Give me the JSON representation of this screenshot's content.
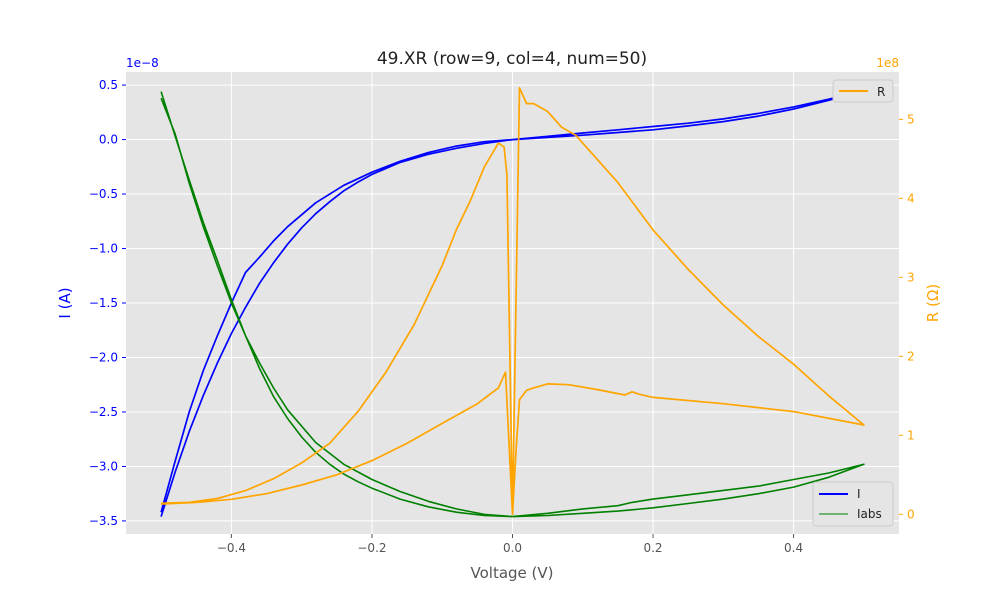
{
  "chart_data": {
    "type": "line",
    "title": "49.XR (row=9, col=4, num=50)",
    "xlabel": "Voltage (V)",
    "ylabel_left": "I (A)",
    "ylabel_right": "R (Ω)",
    "left_multiplier": "1e−8",
    "right_multiplier": "1e8",
    "xlim": [
      -0.55,
      0.55
    ],
    "ylim_left": [
      -3.62,
      0.62
    ],
    "ylim_right": [
      -0.25,
      5.6
    ],
    "x_ticks": [
      -0.4,
      -0.2,
      0.0,
      0.2,
      0.4
    ],
    "x_tick_labels": [
      "−0.4",
      "−0.2",
      "0.0",
      "0.2",
      "0.4"
    ],
    "left_ticks": [
      0.5,
      0.0,
      -0.5,
      -1.0,
      -1.5,
      -2.0,
      -2.5,
      -3.0,
      -3.5
    ],
    "left_tick_labels": [
      "0.5",
      "0.0",
      "−0.5",
      "−1.0",
      "−1.5",
      "−2.0",
      "−2.5",
      "−3.0",
      "−3.5"
    ],
    "right_ticks": [
      0,
      1,
      2,
      3,
      4,
      5
    ],
    "right_tick_labels": [
      "0",
      "1",
      "2",
      "3",
      "4",
      "5"
    ],
    "grid": true,
    "legend_left_axis": {
      "placement": "lower-right",
      "entries": [
        "I",
        "Iabs"
      ]
    },
    "legend_right_axis": {
      "placement": "upper-right",
      "entries": [
        "R"
      ]
    },
    "series": [
      {
        "name": "I",
        "axis": "left",
        "color": "#0000ff",
        "points": [
          [
            -0.5,
            -3.46
          ],
          [
            -0.48,
            -3.05
          ],
          [
            -0.46,
            -2.68
          ],
          [
            -0.44,
            -2.35
          ],
          [
            -0.42,
            -2.05
          ],
          [
            -0.4,
            -1.78
          ],
          [
            -0.38,
            -1.54
          ],
          [
            -0.36,
            -1.32
          ],
          [
            -0.34,
            -1.13
          ],
          [
            -0.32,
            -0.96
          ],
          [
            -0.3,
            -0.81
          ],
          [
            -0.28,
            -0.68
          ],
          [
            -0.26,
            -0.57
          ],
          [
            -0.24,
            -0.47
          ],
          [
            -0.22,
            -0.39
          ],
          [
            -0.2,
            -0.32
          ],
          [
            -0.16,
            -0.21
          ],
          [
            -0.12,
            -0.135
          ],
          [
            -0.08,
            -0.08
          ],
          [
            -0.04,
            -0.035
          ],
          [
            0.0,
            0.0
          ],
          [
            0.05,
            0.03
          ],
          [
            0.1,
            0.06
          ],
          [
            0.15,
            0.09
          ],
          [
            0.2,
            0.12
          ],
          [
            0.25,
            0.15
          ],
          [
            0.3,
            0.19
          ],
          [
            0.35,
            0.24
          ],
          [
            0.4,
            0.3
          ],
          [
            0.45,
            0.37
          ],
          [
            0.5,
            0.45
          ],
          [
            0.45,
            0.36
          ],
          [
            0.4,
            0.28
          ],
          [
            0.35,
            0.215
          ],
          [
            0.3,
            0.165
          ],
          [
            0.25,
            0.125
          ],
          [
            0.2,
            0.09
          ],
          [
            0.15,
            0.065
          ],
          [
            0.1,
            0.04
          ],
          [
            0.05,
            0.02
          ],
          [
            0.0,
            0.0
          ],
          [
            -0.04,
            -0.02
          ],
          [
            -0.08,
            -0.06
          ],
          [
            -0.12,
            -0.12
          ],
          [
            -0.16,
            -0.2
          ],
          [
            -0.2,
            -0.3
          ],
          [
            -0.24,
            -0.42
          ],
          [
            -0.28,
            -0.58
          ],
          [
            -0.32,
            -0.8
          ],
          [
            -0.34,
            -0.93
          ],
          [
            -0.36,
            -1.08
          ],
          [
            -0.38,
            -1.22
          ],
          [
            -0.4,
            -1.5
          ],
          [
            -0.42,
            -1.8
          ],
          [
            -0.44,
            -2.12
          ],
          [
            -0.46,
            -2.5
          ],
          [
            -0.48,
            -2.95
          ],
          [
            -0.5,
            -3.42
          ]
        ]
      },
      {
        "name": "Iabs",
        "axis": "left",
        "color": "#008000",
        "points": [
          [
            -0.5,
            0.44
          ],
          [
            -0.48,
            0.03
          ],
          [
            -0.46,
            -0.37
          ],
          [
            -0.44,
            -0.76
          ],
          [
            -0.42,
            -1.11
          ],
          [
            -0.4,
            -1.47
          ],
          [
            -0.38,
            -1.8
          ],
          [
            -0.36,
            -2.1
          ],
          [
            -0.34,
            -2.36
          ],
          [
            -0.32,
            -2.56
          ],
          [
            -0.3,
            -2.73
          ],
          [
            -0.28,
            -2.87
          ],
          [
            -0.26,
            -2.98
          ],
          [
            -0.24,
            -3.07
          ],
          [
            -0.22,
            -3.14
          ],
          [
            -0.2,
            -3.2
          ],
          [
            -0.16,
            -3.3
          ],
          [
            -0.12,
            -3.37
          ],
          [
            -0.08,
            -3.42
          ],
          [
            -0.04,
            -3.45
          ],
          [
            0.0,
            -3.46
          ],
          [
            0.05,
            -3.45
          ],
          [
            0.1,
            -3.43
          ],
          [
            0.15,
            -3.41
          ],
          [
            0.2,
            -3.38
          ],
          [
            0.25,
            -3.34
          ],
          [
            0.3,
            -3.3
          ],
          [
            0.35,
            -3.25
          ],
          [
            0.4,
            -3.19
          ],
          [
            0.45,
            -3.1
          ],
          [
            0.5,
            -2.98
          ],
          [
            0.45,
            -3.06
          ],
          [
            0.4,
            -3.12
          ],
          [
            0.35,
            -3.18
          ],
          [
            0.3,
            -3.22
          ],
          [
            0.25,
            -3.26
          ],
          [
            0.2,
            -3.3
          ],
          [
            0.17,
            -3.33
          ],
          [
            0.15,
            -3.36
          ],
          [
            0.1,
            -3.39
          ],
          [
            0.05,
            -3.43
          ],
          [
            0.0,
            -3.46
          ],
          [
            -0.04,
            -3.44
          ],
          [
            -0.08,
            -3.39
          ],
          [
            -0.12,
            -3.32
          ],
          [
            -0.16,
            -3.23
          ],
          [
            -0.2,
            -3.12
          ],
          [
            -0.24,
            -2.98
          ],
          [
            -0.28,
            -2.78
          ],
          [
            -0.32,
            -2.48
          ],
          [
            -0.34,
            -2.28
          ],
          [
            -0.36,
            -2.05
          ],
          [
            -0.38,
            -1.8
          ],
          [
            -0.4,
            -1.5
          ],
          [
            -0.42,
            -1.16
          ],
          [
            -0.44,
            -0.8
          ],
          [
            -0.46,
            -0.4
          ],
          [
            -0.48,
            0.05
          ],
          [
            -0.5,
            0.38
          ]
        ]
      },
      {
        "name": "R",
        "axis": "right",
        "color": "#ffa500",
        "points": [
          [
            -0.5,
            0.14
          ],
          [
            -0.46,
            0.15
          ],
          [
            -0.42,
            0.2
          ],
          [
            -0.38,
            0.3
          ],
          [
            -0.34,
            0.45
          ],
          [
            -0.3,
            0.65
          ],
          [
            -0.26,
            0.9
          ],
          [
            -0.22,
            1.3
          ],
          [
            -0.18,
            1.8
          ],
          [
            -0.14,
            2.4
          ],
          [
            -0.1,
            3.15
          ],
          [
            -0.08,
            3.6
          ],
          [
            -0.06,
            3.97
          ],
          [
            -0.04,
            4.4
          ],
          [
            -0.02,
            4.7
          ],
          [
            -0.012,
            4.65
          ],
          [
            -0.008,
            4.3
          ],
          [
            0.0,
            0.0
          ],
          [
            0.01,
            5.4
          ],
          [
            0.02,
            5.2
          ],
          [
            0.03,
            5.2
          ],
          [
            0.04,
            5.15
          ],
          [
            0.05,
            5.1
          ],
          [
            0.07,
            4.9
          ],
          [
            0.09,
            4.8
          ],
          [
            0.11,
            4.6
          ],
          [
            0.15,
            4.2
          ],
          [
            0.2,
            3.6
          ],
          [
            0.25,
            3.1
          ],
          [
            0.3,
            2.65
          ],
          [
            0.35,
            2.25
          ],
          [
            0.4,
            1.9
          ],
          [
            0.45,
            1.5
          ],
          [
            0.5,
            1.13
          ],
          [
            0.4,
            1.3
          ],
          [
            0.3,
            1.4
          ],
          [
            0.2,
            1.48
          ],
          [
            0.18,
            1.52
          ],
          [
            0.17,
            1.55
          ],
          [
            0.16,
            1.51
          ],
          [
            0.12,
            1.58
          ],
          [
            0.08,
            1.64
          ],
          [
            0.05,
            1.65
          ],
          [
            0.03,
            1.6
          ],
          [
            0.02,
            1.57
          ],
          [
            0.01,
            1.45
          ],
          [
            0.005,
            0.8
          ],
          [
            0.0,
            0.0
          ],
          [
            -0.01,
            1.8
          ],
          [
            -0.02,
            1.6
          ],
          [
            -0.05,
            1.4
          ],
          [
            -0.1,
            1.15
          ],
          [
            -0.15,
            0.9
          ],
          [
            -0.2,
            0.68
          ],
          [
            -0.25,
            0.5
          ],
          [
            -0.3,
            0.37
          ],
          [
            -0.35,
            0.26
          ],
          [
            -0.4,
            0.19
          ],
          [
            -0.45,
            0.15
          ],
          [
            -0.5,
            0.13
          ]
        ]
      }
    ]
  }
}
